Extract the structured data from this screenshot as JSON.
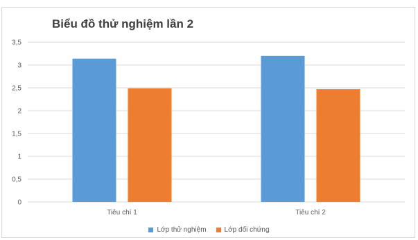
{
  "chart_data": {
    "type": "bar",
    "title": "Biểu đồ thử nghiệm lần 2",
    "xlabel": "",
    "ylabel": "",
    "categories": [
      "Tiêu chí  1",
      "Tiêu chí 2"
    ],
    "series": [
      {
        "name": "Lớp thử nghiệm",
        "color": "#5b9bd5",
        "values": [
          3.14,
          3.2
        ]
      },
      {
        "name": "Lớp đối chứng",
        "color": "#ed7d31",
        "values": [
          2.49,
          2.47
        ]
      }
    ],
    "ylim": [
      0,
      3.5
    ],
    "yticks": [
      "0",
      "0,5",
      "1",
      "1,5",
      "2",
      "2,5",
      "3",
      "3,5"
    ],
    "grid": true,
    "legend_position": "bottom"
  }
}
